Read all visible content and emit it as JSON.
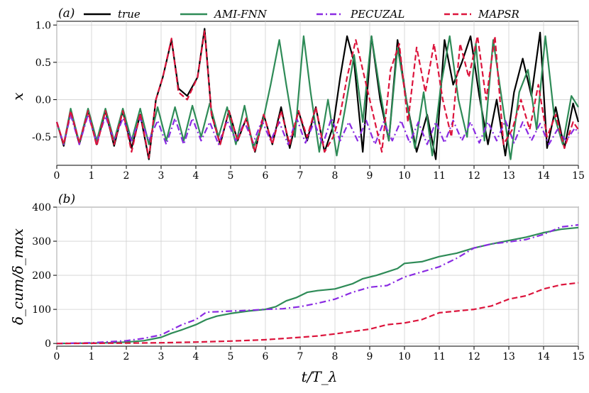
{
  "colors": {
    "true": "#000000",
    "AMI-FNN": "#2e8b57",
    "PECUZAL": "#8a2be2",
    "MAPSR": "#dc143c"
  },
  "chart_data": [
    {
      "panel_label": "(a)",
      "type": "line",
      "ylabel": "x",
      "xlim": [
        0,
        15
      ],
      "ylim": [
        -0.88,
        1.05
      ],
      "xticks": [
        "0",
        "1",
        "2",
        "3",
        "4",
        "5",
        "6",
        "7",
        "8",
        "9",
        "10",
        "11",
        "12",
        "13",
        "14",
        "15"
      ],
      "yticks": [
        {
          "value": 1.0,
          "label": "1.0"
        },
        {
          "value": 0.5,
          "label": "0.5"
        },
        {
          "value": 0.0,
          "label": "0.0"
        },
        {
          "value": -0.5,
          "label": "-0.5"
        }
      ],
      "grid": true,
      "legend": "top",
      "series": [
        {
          "name": "true",
          "style": "solid",
          "x": [
            0,
            0.2,
            0.4,
            0.65,
            0.9,
            1.15,
            1.4,
            1.65,
            1.9,
            2.15,
            2.4,
            2.65,
            2.85,
            3.05,
            3.3,
            3.5,
            3.75,
            4.05,
            4.25,
            4.45,
            4.7,
            4.95,
            5.2,
            5.45,
            5.7,
            5.95,
            6.2,
            6.45,
            6.7,
            6.95,
            7.2,
            7.45,
            7.7,
            7.95,
            8.15,
            8.35,
            8.55,
            8.8,
            9.05,
            9.3,
            9.55,
            9.8,
            10.05,
            10.35,
            10.65,
            10.9,
            11.15,
            11.4,
            11.65,
            11.9,
            12.15,
            12.4,
            12.65,
            12.9,
            13.15,
            13.4,
            13.65,
            13.9,
            14.1,
            14.35,
            14.6,
            14.85,
            15
          ],
          "y": [
            -0.3,
            -0.62,
            -0.15,
            -0.6,
            -0.15,
            -0.6,
            -0.15,
            -0.62,
            -0.15,
            -0.65,
            -0.2,
            -0.8,
            0.0,
            0.3,
            0.8,
            0.15,
            0.05,
            0.3,
            0.95,
            -0.2,
            -0.6,
            -0.15,
            -0.55,
            -0.25,
            -0.7,
            -0.2,
            -0.6,
            -0.1,
            -0.65,
            -0.15,
            -0.55,
            -0.1,
            -0.7,
            -0.35,
            0.3,
            0.85,
            0.5,
            -0.7,
            0.85,
            0.0,
            -0.55,
            0.8,
            0.0,
            -0.7,
            -0.2,
            -0.8,
            0.8,
            0.2,
            0.5,
            0.85,
            0.05,
            -0.6,
            0.0,
            -0.75,
            0.1,
            0.55,
            0.05,
            0.9,
            -0.65,
            -0.1,
            -0.65,
            -0.05,
            -0.3
          ]
        },
        {
          "name": "AMI-FNN",
          "style": "solid",
          "x": [
            0,
            0.2,
            0.4,
            0.65,
            0.9,
            1.15,
            1.4,
            1.65,
            1.9,
            2.15,
            2.4,
            2.65,
            2.9,
            3.15,
            3.4,
            3.65,
            3.9,
            4.15,
            4.4,
            4.65,
            4.9,
            5.15,
            5.4,
            5.65,
            5.9,
            6.15,
            6.4,
            6.6,
            6.85,
            7.1,
            7.3,
            7.55,
            7.8,
            8.05,
            8.3,
            8.55,
            8.8,
            9.05,
            9.3,
            9.55,
            9.8,
            10.05,
            10.3,
            10.55,
            10.8,
            11.05,
            11.3,
            11.55,
            11.8,
            12.05,
            12.3,
            12.55,
            12.8,
            13.05,
            13.3,
            13.55,
            13.8,
            14.05,
            14.3,
            14.55,
            14.8,
            15
          ],
          "y": [
            -0.3,
            -0.6,
            -0.12,
            -0.58,
            -0.12,
            -0.55,
            -0.12,
            -0.55,
            -0.12,
            -0.55,
            -0.12,
            -0.6,
            -0.1,
            -0.55,
            -0.1,
            -0.55,
            -0.08,
            -0.5,
            -0.05,
            -0.5,
            -0.1,
            -0.6,
            -0.08,
            -0.65,
            -0.35,
            0.2,
            0.8,
            0.2,
            -0.5,
            0.85,
            0.1,
            -0.7,
            0.0,
            -0.75,
            -0.1,
            0.6,
            -0.3,
            0.85,
            0.1,
            -0.55,
            0.7,
            0.0,
            -0.65,
            0.1,
            -0.75,
            0.2,
            0.85,
            0.0,
            -0.5,
            0.75,
            -0.55,
            0.8,
            0.0,
            -0.8,
            0.1,
            0.4,
            -0.4,
            0.85,
            -0.2,
            -0.6,
            0.05,
            -0.1
          ]
        },
        {
          "name": "PECUZAL",
          "style": "dashdot",
          "x": [
            0,
            0.2,
            0.4,
            0.65,
            0.9,
            1.15,
            1.4,
            1.65,
            1.9,
            2.15,
            2.4,
            2.65,
            2.9,
            3.15,
            3.4,
            3.65,
            3.9,
            4.15,
            4.4,
            4.65,
            4.9,
            5.15,
            5.4,
            5.65,
            5.9,
            6.15,
            6.4,
            6.65,
            6.9,
            7.15,
            7.4,
            7.65,
            7.9,
            8.15,
            8.4,
            8.65,
            8.9,
            9.15,
            9.4,
            9.65,
            9.9,
            10.15,
            10.4,
            10.65,
            10.9,
            11.15,
            11.4,
            11.65,
            11.9,
            12.15,
            12.4,
            12.65,
            12.9,
            13.15,
            13.4,
            13.65,
            13.9,
            14.15,
            14.4,
            14.65,
            14.9,
            15
          ],
          "y": [
            -0.3,
            -0.6,
            -0.2,
            -0.6,
            -0.2,
            -0.58,
            -0.22,
            -0.55,
            -0.25,
            -0.55,
            -0.25,
            -0.55,
            -0.28,
            -0.6,
            -0.25,
            -0.6,
            -0.25,
            -0.55,
            -0.3,
            -0.6,
            -0.28,
            -0.55,
            -0.3,
            -0.58,
            -0.28,
            -0.55,
            -0.3,
            -0.6,
            -0.25,
            -0.58,
            -0.3,
            -0.6,
            -0.25,
            -0.55,
            -0.3,
            -0.55,
            -0.28,
            -0.6,
            -0.3,
            -0.55,
            -0.28,
            -0.58,
            -0.3,
            -0.6,
            -0.3,
            -0.58,
            -0.28,
            -0.55,
            -0.3,
            -0.58,
            -0.3,
            -0.55,
            -0.28,
            -0.58,
            -0.3,
            -0.55,
            -0.32,
            -0.6,
            -0.4,
            -0.55,
            -0.38,
            -0.45
          ]
        },
        {
          "name": "MAPSR",
          "style": "dashed",
          "x": [
            0,
            0.2,
            0.4,
            0.65,
            0.9,
            1.15,
            1.4,
            1.65,
            1.9,
            2.15,
            2.4,
            2.65,
            2.85,
            3.05,
            3.3,
            3.5,
            3.75,
            4.05,
            4.25,
            4.45,
            4.7,
            4.95,
            5.2,
            5.45,
            5.7,
            5.95,
            6.2,
            6.45,
            6.7,
            6.95,
            7.2,
            7.45,
            7.7,
            7.95,
            8.15,
            8.35,
            8.6,
            8.85,
            9.1,
            9.35,
            9.6,
            9.85,
            10.1,
            10.35,
            10.6,
            10.85,
            11.1,
            11.35,
            11.6,
            11.85,
            12.1,
            12.35,
            12.6,
            12.85,
            13.1,
            13.35,
            13.6,
            13.85,
            14.1,
            14.35,
            14.6,
            14.85,
            15
          ],
          "y": [
            -0.3,
            -0.6,
            -0.15,
            -0.58,
            -0.15,
            -0.62,
            -0.15,
            -0.6,
            -0.15,
            -0.7,
            -0.18,
            -0.78,
            0.0,
            0.3,
            0.82,
            0.1,
            0.0,
            0.3,
            0.92,
            -0.2,
            -0.6,
            -0.15,
            -0.55,
            -0.25,
            -0.7,
            -0.2,
            -0.6,
            -0.15,
            -0.6,
            -0.15,
            -0.5,
            -0.1,
            -0.7,
            -0.5,
            -0.2,
            0.3,
            0.8,
            0.3,
            -0.2,
            -0.7,
            0.4,
            0.75,
            -0.3,
            0.7,
            0.1,
            0.75,
            0.0,
            -0.5,
            0.75,
            0.3,
            0.85,
            0.0,
            0.85,
            -0.6,
            -0.4,
            0.0,
            -0.4,
            0.2,
            -0.5,
            -0.2,
            -0.65,
            -0.3,
            -0.4
          ]
        }
      ]
    },
    {
      "panel_label": "(b)",
      "type": "line",
      "xlabel": "t/T_λ",
      "ylabel": "δ_cum/δ_max",
      "xlim": [
        0,
        15
      ],
      "ylim": [
        -8,
        400
      ],
      "xticks": [
        "0",
        "1",
        "2",
        "3",
        "4",
        "5",
        "6",
        "7",
        "8",
        "9",
        "10",
        "11",
        "12",
        "13",
        "14",
        "15"
      ],
      "yticks": [
        {
          "value": 0,
          "label": "0"
        },
        {
          "value": 100,
          "label": "100"
        },
        {
          "value": 200,
          "label": "200"
        },
        {
          "value": 300,
          "label": "300"
        },
        {
          "value": 400,
          "label": "400"
        }
      ],
      "grid": true,
      "series": [
        {
          "name": "AMI-FNN",
          "style": "solid",
          "x": [
            0,
            1,
            1.5,
            2,
            2.5,
            3,
            3.3,
            3.6,
            4,
            4.3,
            4.6,
            5,
            5.5,
            6,
            6.3,
            6.6,
            6.9,
            7.2,
            7.5,
            8,
            8.5,
            8.8,
            9.2,
            9.5,
            9.8,
            10,
            10.5,
            11,
            11.5,
            12,
            12.5,
            13,
            13.5,
            14,
            14.5,
            15
          ],
          "y": [
            0,
            1,
            2,
            4,
            8,
            18,
            30,
            40,
            55,
            70,
            80,
            88,
            95,
            100,
            108,
            125,
            135,
            150,
            155,
            160,
            175,
            190,
            200,
            210,
            220,
            235,
            240,
            255,
            265,
            280,
            292,
            302,
            312,
            325,
            335,
            340
          ]
        },
        {
          "name": "PECUZAL",
          "style": "dashdot",
          "x": [
            0,
            1,
            1.5,
            2,
            2.5,
            3,
            3.3,
            3.6,
            4,
            4.3,
            4.6,
            5,
            5.5,
            6,
            6.5,
            7,
            7.5,
            8,
            8.5,
            9,
            9.5,
            10,
            10.5,
            11,
            11.5,
            12,
            12.5,
            13,
            13.5,
            14,
            14.5,
            15
          ],
          "y": [
            0,
            2,
            5,
            8,
            15,
            25,
            40,
            55,
            70,
            92,
            93,
            95,
            97,
            100,
            102,
            108,
            118,
            130,
            150,
            165,
            170,
            195,
            210,
            225,
            250,
            280,
            292,
            298,
            305,
            320,
            342,
            348
          ]
        },
        {
          "name": "MAPSR",
          "style": "dashed",
          "x": [
            0,
            1,
            2,
            3,
            4,
            5,
            6,
            7,
            7.5,
            8,
            8.5,
            9,
            9.5,
            10,
            10.5,
            11,
            11.5,
            12,
            12.5,
            13,
            13.5,
            14,
            14.5,
            15
          ],
          "y": [
            0,
            0.5,
            1,
            2,
            4,
            7,
            11,
            18,
            22,
            28,
            35,
            42,
            55,
            60,
            70,
            90,
            95,
            100,
            110,
            130,
            140,
            160,
            172,
            178
          ]
        }
      ]
    }
  ]
}
